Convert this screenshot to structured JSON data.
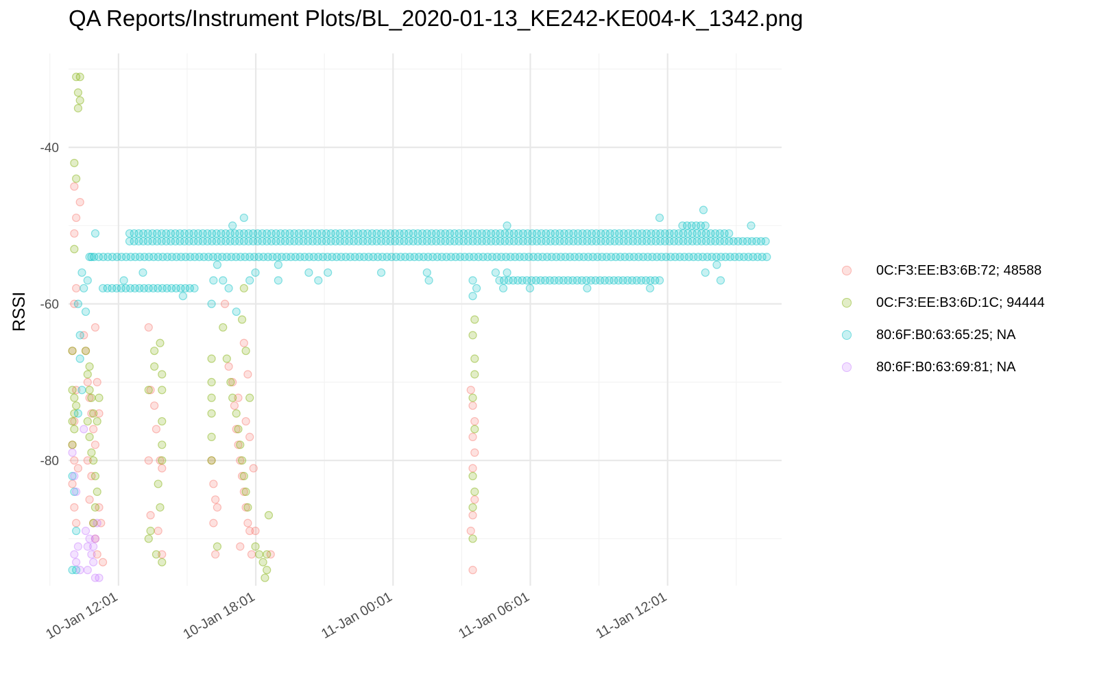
{
  "chart_data": {
    "type": "scatter",
    "title": "QA Reports/Instrument Plots/BL_2020-01-13_KE242-KE004-K_1342.png",
    "xlabel": "",
    "ylabel": "RSSI",
    "ylim": [
      -96,
      -28
    ],
    "xlim": [
      "2020-01-10 09:50",
      "2020-01-11 17:00"
    ],
    "y_ticks": [
      -40,
      -60,
      -80
    ],
    "x_ticks": [
      {
        "at": "2020-01-10 12:01",
        "label": "10-Jan 12:01"
      },
      {
        "at": "2020-01-10 18:01",
        "label": "10-Jan 18:01"
      },
      {
        "at": "2020-01-11 00:01",
        "label": "11-Jan 00:01"
      },
      {
        "at": "2020-01-11 06:01",
        "label": "11-Jan 06:01"
      },
      {
        "at": "2020-01-11 12:01",
        "label": "11-Jan 12:01"
      }
    ],
    "grid": true,
    "legend_position": "right",
    "series": [
      {
        "name": "0C:F3:EE:B3:6B:72; 48588",
        "color": "#F8766D",
        "points": [
          [
            "2020-01-10 10:05",
            -45
          ],
          [
            "2020-01-10 10:20",
            -47
          ],
          [
            "2020-01-10 10:10",
            -49
          ],
          [
            "2020-01-10 10:05",
            -51
          ],
          [
            "2020-01-10 10:10",
            -58
          ],
          [
            "2020-01-10 10:05",
            -60
          ],
          [
            "2020-01-10 10:00",
            -66
          ],
          [
            "2020-01-10 10:10",
            -71
          ],
          [
            "2020-01-10 10:05",
            -75
          ],
          [
            "2020-01-10 10:00",
            -78
          ],
          [
            "2020-01-10 10:05",
            -80
          ],
          [
            "2020-01-10 10:15",
            -81
          ],
          [
            "2020-01-10 10:00",
            -83
          ],
          [
            "2020-01-10 10:05",
            -86
          ],
          [
            "2020-01-10 10:10",
            -88
          ],
          [
            "2020-01-10 10:30",
            -64
          ],
          [
            "2020-01-10 10:35",
            -66
          ],
          [
            "2020-01-10 10:40",
            -70
          ],
          [
            "2020-01-10 10:45",
            -72
          ],
          [
            "2020-01-10 10:50",
            -74
          ],
          [
            "2020-01-10 10:55",
            -76
          ],
          [
            "2020-01-10 11:00",
            -78
          ],
          [
            "2020-01-10 10:40",
            -80
          ],
          [
            "2020-01-10 10:50",
            -82
          ],
          [
            "2020-01-10 10:45",
            -85
          ],
          [
            "2020-01-10 10:55",
            -88
          ],
          [
            "2020-01-10 11:00",
            -90
          ],
          [
            "2020-01-10 11:05",
            -92
          ],
          [
            "2020-01-10 11:10",
            -86
          ],
          [
            "2020-01-10 11:15",
            -88
          ],
          [
            "2020-01-10 11:20",
            -93
          ],
          [
            "2020-01-10 11:05",
            -70
          ],
          [
            "2020-01-10 11:10",
            -74
          ],
          [
            "2020-01-10 11:00",
            -63
          ],
          [
            "2020-01-10 13:20",
            -63
          ],
          [
            "2020-01-10 13:25",
            -71
          ],
          [
            "2020-01-10 13:35",
            -73
          ],
          [
            "2020-01-10 13:40",
            -76
          ],
          [
            "2020-01-10 13:20",
            -80
          ],
          [
            "2020-01-10 13:50",
            -80
          ],
          [
            "2020-01-10 13:55",
            -81
          ],
          [
            "2020-01-10 13:25",
            -87
          ],
          [
            "2020-01-10 13:45",
            -89
          ],
          [
            "2020-01-10 13:55",
            -92
          ],
          [
            "2020-01-10 16:05",
            -80
          ],
          [
            "2020-01-10 16:10",
            -83
          ],
          [
            "2020-01-10 16:15",
            -85
          ],
          [
            "2020-01-10 16:20",
            -86
          ],
          [
            "2020-01-10 16:10",
            -88
          ],
          [
            "2020-01-10 16:15",
            -92
          ],
          [
            "2020-01-10 16:40",
            -60
          ],
          [
            "2020-01-10 16:50",
            -68
          ],
          [
            "2020-01-10 17:00",
            -70
          ],
          [
            "2020-01-10 17:05",
            -73
          ],
          [
            "2020-01-10 17:10",
            -76
          ],
          [
            "2020-01-10 17:15",
            -78
          ],
          [
            "2020-01-10 17:20",
            -80
          ],
          [
            "2020-01-10 17:25",
            -82
          ],
          [
            "2020-01-10 17:30",
            -84
          ],
          [
            "2020-01-10 17:35",
            -86
          ],
          [
            "2020-01-10 17:40",
            -88
          ],
          [
            "2020-01-10 17:45",
            -89
          ],
          [
            "2020-01-10 17:20",
            -91
          ],
          [
            "2020-01-10 17:50",
            -92
          ],
          [
            "2020-01-10 17:30",
            -65
          ],
          [
            "2020-01-10 17:40",
            -69
          ],
          [
            "2020-01-10 17:15",
            -72
          ],
          [
            "2020-01-10 17:35",
            -75
          ],
          [
            "2020-01-10 17:45",
            -77
          ],
          [
            "2020-01-10 17:55",
            -81
          ],
          [
            "2020-01-10 18:00",
            -89
          ],
          [
            "2020-01-10 18:40",
            -92
          ],
          [
            "2020-01-11 03:25",
            -71
          ],
          [
            "2020-01-11 03:30",
            -73
          ],
          [
            "2020-01-11 03:35",
            -75
          ],
          [
            "2020-01-11 03:30",
            -77
          ],
          [
            "2020-01-11 03:35",
            -79
          ],
          [
            "2020-01-11 03:30",
            -81
          ],
          [
            "2020-01-11 03:35",
            -85
          ],
          [
            "2020-01-11 03:30",
            -87
          ],
          [
            "2020-01-11 03:25",
            -89
          ],
          [
            "2020-01-11 03:30",
            -94
          ]
        ]
      },
      {
        "name": "0C:F3:EE:B3:6D:1C; 94444",
        "color": "#7CAE00",
        "points": [
          [
            "2020-01-10 10:10",
            -31
          ],
          [
            "2020-01-10 10:20",
            -31
          ],
          [
            "2020-01-10 10:15",
            -33
          ],
          [
            "2020-01-10 10:20",
            -34
          ],
          [
            "2020-01-10 10:15",
            -35
          ],
          [
            "2020-01-10 10:05",
            -42
          ],
          [
            "2020-01-10 10:10",
            -44
          ],
          [
            "2020-01-10 10:05",
            -53
          ],
          [
            "2020-01-10 10:00",
            -66
          ],
          [
            "2020-01-10 10:00",
            -71
          ],
          [
            "2020-01-10 10:05",
            -72
          ],
          [
            "2020-01-10 10:10",
            -73
          ],
          [
            "2020-01-10 10:05",
            -74
          ],
          [
            "2020-01-10 10:00",
            -75
          ],
          [
            "2020-01-10 10:05",
            -76
          ],
          [
            "2020-01-10 10:00",
            -78
          ],
          [
            "2020-01-10 10:35",
            -66
          ],
          [
            "2020-01-10 10:40",
            -69
          ],
          [
            "2020-01-10 10:45",
            -71
          ],
          [
            "2020-01-10 10:50",
            -72
          ],
          [
            "2020-01-10 10:55",
            -74
          ],
          [
            "2020-01-10 10:40",
            -75
          ],
          [
            "2020-01-10 10:45",
            -77
          ],
          [
            "2020-01-10 10:50",
            -79
          ],
          [
            "2020-01-10 10:55",
            -80
          ],
          [
            "2020-01-10 11:00",
            -82
          ],
          [
            "2020-01-10 11:05",
            -84
          ],
          [
            "2020-01-10 11:00",
            -86
          ],
          [
            "2020-01-10 11:10",
            -72
          ],
          [
            "2020-01-10 11:05",
            -75
          ],
          [
            "2020-01-10 10:45",
            -68
          ],
          [
            "2020-01-10 10:55",
            -88
          ],
          [
            "2020-01-10 13:20",
            -71
          ],
          [
            "2020-01-10 13:35",
            -66
          ],
          [
            "2020-01-10 13:35",
            -68
          ],
          [
            "2020-01-10 13:50",
            -65
          ],
          [
            "2020-01-10 13:55",
            -69
          ],
          [
            "2020-01-10 13:55",
            -71
          ],
          [
            "2020-01-10 13:55",
            -75
          ],
          [
            "2020-01-10 13:55",
            -78
          ],
          [
            "2020-01-10 13:55",
            -80
          ],
          [
            "2020-01-10 13:45",
            -83
          ],
          [
            "2020-01-10 13:50",
            -86
          ],
          [
            "2020-01-10 13:25",
            -89
          ],
          [
            "2020-01-10 13:20",
            -90
          ],
          [
            "2020-01-10 13:40",
            -92
          ],
          [
            "2020-01-10 13:55",
            -93
          ],
          [
            "2020-01-10 16:05",
            -67
          ],
          [
            "2020-01-10 16:05",
            -70
          ],
          [
            "2020-01-10 16:05",
            -72
          ],
          [
            "2020-01-10 16:05",
            -74
          ],
          [
            "2020-01-10 16:05",
            -77
          ],
          [
            "2020-01-10 16:05",
            -80
          ],
          [
            "2020-01-10 16:20",
            -91
          ],
          [
            "2020-01-10 16:35",
            -63
          ],
          [
            "2020-01-10 16:45",
            -67
          ],
          [
            "2020-01-10 16:55",
            -70
          ],
          [
            "2020-01-10 17:00",
            -72
          ],
          [
            "2020-01-10 17:10",
            -74
          ],
          [
            "2020-01-10 17:15",
            -76
          ],
          [
            "2020-01-10 17:20",
            -78
          ],
          [
            "2020-01-10 17:25",
            -80
          ],
          [
            "2020-01-10 17:30",
            -82
          ],
          [
            "2020-01-10 17:35",
            -84
          ],
          [
            "2020-01-10 17:40",
            -86
          ],
          [
            "2020-01-10 17:45",
            -72
          ],
          [
            "2020-01-10 17:35",
            -66
          ],
          [
            "2020-01-10 17:25",
            -62
          ],
          [
            "2020-01-10 17:30",
            -58
          ],
          [
            "2020-01-10 18:00",
            -91
          ],
          [
            "2020-01-10 18:10",
            -92
          ],
          [
            "2020-01-10 18:20",
            -93
          ],
          [
            "2020-01-10 18:30",
            -92
          ],
          [
            "2020-01-10 18:35",
            -87
          ],
          [
            "2020-01-10 18:30",
            -94
          ],
          [
            "2020-01-10 18:25",
            -95
          ],
          [
            "2020-01-11 03:30",
            -64
          ],
          [
            "2020-01-11 03:35",
            -62
          ],
          [
            "2020-01-11 03:35",
            -67
          ],
          [
            "2020-01-11 03:35",
            -69
          ],
          [
            "2020-01-11 03:30",
            -72
          ],
          [
            "2020-01-11 03:35",
            -76
          ],
          [
            "2020-01-11 03:30",
            -82
          ],
          [
            "2020-01-11 03:35",
            -84
          ],
          [
            "2020-01-11 03:30",
            -86
          ],
          [
            "2020-01-11 03:30",
            -90
          ]
        ]
      },
      {
        "name": "80:6F:B0:63:65:25; NA",
        "color": "#00BFC4",
        "bands": [
          {
            "from": "2020-01-10 10:45",
            "to": "2020-01-11 16:25",
            "y": -54
          },
          {
            "from": "2020-01-10 12:30",
            "to": "2020-01-11 16:25",
            "y": -52
          },
          {
            "from": "2020-01-10 12:30",
            "to": "2020-01-11 14:50",
            "y": -51
          },
          {
            "from": "2020-01-10 11:20",
            "to": "2020-01-10 15:30",
            "y": -58
          },
          {
            "from": "2020-01-11 04:40",
            "to": "2020-01-11 11:40",
            "y": -57
          },
          {
            "from": "2020-01-11 12:40",
            "to": "2020-01-11 13:40",
            "y": -50
          }
        ],
        "points": [
          [
            "2020-01-10 10:15",
            -60
          ],
          [
            "2020-01-10 10:20",
            -64
          ],
          [
            "2020-01-10 10:25",
            -56
          ],
          [
            "2020-01-10 10:30",
            -58
          ],
          [
            "2020-01-10 10:35",
            -61
          ],
          [
            "2020-01-10 10:20",
            -67
          ],
          [
            "2020-01-10 10:25",
            -71
          ],
          [
            "2020-01-10 10:15",
            -74
          ],
          [
            "2020-01-10 10:00",
            -82
          ],
          [
            "2020-01-10 10:05",
            -84
          ],
          [
            "2020-01-10 10:10",
            -89
          ],
          [
            "2020-01-10 10:00",
            -94
          ],
          [
            "2020-01-10 10:10",
            -94
          ],
          [
            "2020-01-10 10:40",
            -57
          ],
          [
            "2020-01-10 10:50",
            -54
          ],
          [
            "2020-01-10 11:00",
            -51
          ],
          [
            "2020-01-10 12:15",
            -57
          ],
          [
            "2020-01-10 13:05",
            -56
          ],
          [
            "2020-01-10 14:50",
            -59
          ],
          [
            "2020-01-10 16:10",
            -57
          ],
          [
            "2020-01-10 16:05",
            -60
          ],
          [
            "2020-01-10 16:20",
            -55
          ],
          [
            "2020-01-10 16:35",
            -57
          ],
          [
            "2020-01-10 16:50",
            -58
          ],
          [
            "2020-01-10 17:00",
            -50
          ],
          [
            "2020-01-10 17:10",
            -61
          ],
          [
            "2020-01-10 17:30",
            -49
          ],
          [
            "2020-01-10 17:45",
            -57
          ],
          [
            "2020-01-10 18:00",
            -56
          ],
          [
            "2020-01-10 19:00",
            -57
          ],
          [
            "2020-01-10 19:00",
            -55
          ],
          [
            "2020-01-10 20:20",
            -56
          ],
          [
            "2020-01-10 20:45",
            -57
          ],
          [
            "2020-01-10 21:10",
            -56
          ],
          [
            "2020-01-10 23:30",
            -56
          ],
          [
            "2020-01-11 01:30",
            -56
          ],
          [
            "2020-01-11 01:35",
            -57
          ],
          [
            "2020-01-11 03:30",
            -57
          ],
          [
            "2020-01-11 03:30",
            -59
          ],
          [
            "2020-01-11 03:40",
            -58
          ],
          [
            "2020-01-11 04:30",
            -56
          ],
          [
            "2020-01-11 04:50",
            -58
          ],
          [
            "2020-01-11 05:00",
            -56
          ],
          [
            "2020-01-11 05:00",
            -50
          ],
          [
            "2020-01-11 06:00",
            -58
          ],
          [
            "2020-01-11 08:30",
            -58
          ],
          [
            "2020-01-11 11:15",
            -58
          ],
          [
            "2020-01-11 11:40",
            -49
          ],
          [
            "2020-01-11 13:35",
            -48
          ],
          [
            "2020-01-11 13:40",
            -56
          ],
          [
            "2020-01-11 14:10",
            -55
          ],
          [
            "2020-01-11 14:20",
            -57
          ],
          [
            "2020-01-11 15:40",
            -50
          ]
        ]
      },
      {
        "name": "80:6F:B0:63:69:81; NA",
        "color": "#C77CFF",
        "points": [
          [
            "2020-01-10 10:00",
            -79
          ],
          [
            "2020-01-10 10:05",
            -82
          ],
          [
            "2020-01-10 10:10",
            -84
          ],
          [
            "2020-01-10 10:15",
            -91
          ],
          [
            "2020-01-10 10:05",
            -92
          ],
          [
            "2020-01-10 10:10",
            -93
          ],
          [
            "2020-01-10 10:20",
            -94
          ],
          [
            "2020-01-10 10:30",
            -76
          ],
          [
            "2020-01-10 10:35",
            -89
          ],
          [
            "2020-01-10 10:40",
            -91
          ],
          [
            "2020-01-10 10:45",
            -90
          ],
          [
            "2020-01-10 10:50",
            -92
          ],
          [
            "2020-01-10 10:55",
            -91
          ],
          [
            "2020-01-10 11:00",
            -90
          ],
          [
            "2020-01-10 11:05",
            -88
          ],
          [
            "2020-01-10 11:10",
            -95
          ],
          [
            "2020-01-10 11:00",
            -95
          ],
          [
            "2020-01-10 10:40",
            -94
          ],
          [
            "2020-01-10 10:55",
            -93
          ]
        ]
      }
    ]
  }
}
